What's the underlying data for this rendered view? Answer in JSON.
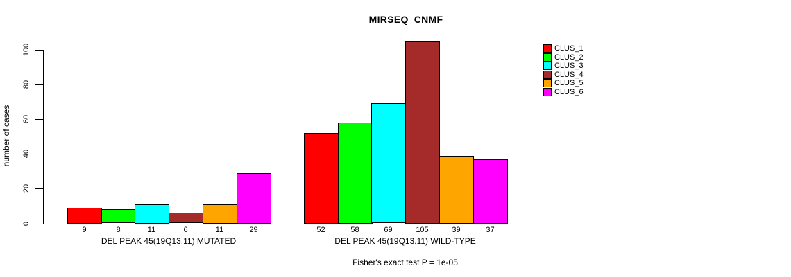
{
  "chart_data": {
    "type": "bar",
    "title": "MIRSEQ_CNMF",
    "ylabel": "number of cases",
    "yticks": [
      0,
      20,
      40,
      60,
      80,
      100
    ],
    "ylim": [
      0,
      105
    ],
    "grid": false,
    "legend_position": "right",
    "series": [
      {
        "name": "CLUS_1",
        "color": "#FF0000"
      },
      {
        "name": "CLUS_2",
        "color": "#00FF00"
      },
      {
        "name": "CLUS_3",
        "color": "#00FFFF"
      },
      {
        "name": "CLUS_4",
        "color": "#A52A2A"
      },
      {
        "name": "CLUS_5",
        "color": "#FFA500"
      },
      {
        "name": "CLUS_6",
        "color": "#FF00FF"
      }
    ],
    "groups": [
      {
        "label": "DEL PEAK 45(19Q13.11) MUTATED",
        "values": [
          9,
          8,
          11,
          6,
          11,
          29
        ]
      },
      {
        "label": "DEL PEAK 45(19Q13.11) WILD-TYPE",
        "values": [
          52,
          58,
          69,
          105,
          39,
          37
        ]
      }
    ],
    "annotation": "Fisher's exact test P = 1e-05"
  }
}
